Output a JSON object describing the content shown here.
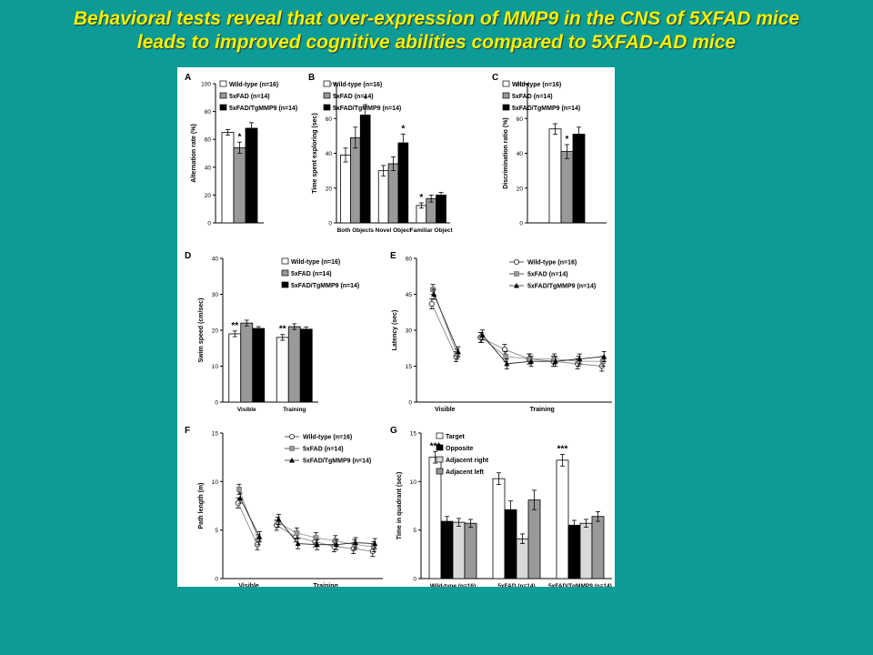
{
  "slide": {
    "title_line1": "Behavioral tests reveal that over-expression of MMP9 in the CNS of 5XFAD mice",
    "title_line2": "leads to improved cognitive abilities compared to 5XFAD-AD mice"
  },
  "colors": {
    "background": "#0c9b96",
    "title": "#f2f200"
  },
  "chart_data": [
    {
      "panel": "A",
      "type": "bar",
      "categories": [
        ""
      ],
      "series": [
        {
          "name": "Wild-type (n=16)",
          "values": [
            65
          ],
          "err": [
            2
          ],
          "fill": "#ffffff"
        },
        {
          "name": "5xFAD (n=14)",
          "values": [
            54
          ],
          "err": [
            4
          ],
          "fill": "#999999"
        },
        {
          "name": "5xFAD/TgMMP9 (n=14)",
          "values": [
            68
          ],
          "err": [
            4
          ],
          "fill": "#000000"
        }
      ],
      "annotations": [
        {
          "series": 1,
          "category": 0,
          "text": "*"
        }
      ],
      "ylabel": "Alternation rate (%)",
      "ylim": [
        0,
        100
      ],
      "yticks": [
        0,
        20,
        40,
        60,
        80,
        100
      ]
    },
    {
      "panel": "B",
      "type": "bar",
      "categories": [
        "Both Objects",
        "Novel Object",
        "Familiar Object"
      ],
      "series": [
        {
          "name": "Wild-type (n=16)",
          "values": [
            39,
            30,
            10
          ],
          "err": [
            4,
            3,
            1.5
          ],
          "fill": "#ffffff"
        },
        {
          "name": "5xFAD (n=14)",
          "values": [
            49,
            34,
            14
          ],
          "err": [
            6,
            4,
            2
          ],
          "fill": "#999999"
        },
        {
          "name": "5xFAD/TgMMP9 (n=14)",
          "values": [
            62,
            46,
            16
          ],
          "err": [
            6,
            5,
            1.5
          ],
          "fill": "#000000"
        }
      ],
      "annotations": [
        {
          "series": 2,
          "category": 0,
          "text": "*"
        },
        {
          "series": 2,
          "category": 1,
          "text": "*"
        },
        {
          "series": 0,
          "category": 2,
          "text": "*"
        }
      ],
      "ylabel": "Time spent exploring (sec)",
      "ylim": [
        0,
        80
      ],
      "yticks": [
        0,
        20,
        40,
        60,
        80
      ]
    },
    {
      "panel": "C",
      "type": "bar",
      "categories": [
        ""
      ],
      "series": [
        {
          "name": "Wild-type (n=16)",
          "values": [
            54
          ],
          "err": [
            3
          ],
          "fill": "#ffffff"
        },
        {
          "name": "5xFAD (n=14)",
          "values": [
            41
          ],
          "err": [
            4
          ],
          "fill": "#999999"
        },
        {
          "name": "5xFAD/TgMMP9 (n=14)",
          "values": [
            51
          ],
          "err": [
            4
          ],
          "fill": "#000000"
        }
      ],
      "annotations": [
        {
          "series": 1,
          "category": 0,
          "text": "*"
        }
      ],
      "ylabel": "Discrimination ratio (%)",
      "ylim": [
        0,
        80
      ],
      "yticks": [
        0,
        20,
        40,
        60,
        80
      ]
    },
    {
      "panel": "D",
      "type": "bar",
      "categories": [
        "Visible",
        "Training"
      ],
      "series": [
        {
          "name": "Wild-type (n=16)",
          "values": [
            19,
            18
          ],
          "err": [
            0.8,
            0.8
          ],
          "fill": "#ffffff"
        },
        {
          "name": "5xFAD (n=14)",
          "values": [
            22,
            21
          ],
          "err": [
            0.8,
            0.8
          ],
          "fill": "#999999"
        },
        {
          "name": "5xFAD/TgMMP9 (n=14)",
          "values": [
            20.5,
            20.3
          ],
          "err": [
            0.5,
            0.6
          ],
          "fill": "#000000"
        }
      ],
      "annotations": [
        {
          "series": 0,
          "category": 0,
          "text": "**"
        },
        {
          "series": 0,
          "category": 1,
          "text": "**"
        }
      ],
      "ylabel": "Swim speed (cm/sec)",
      "ylim": [
        0,
        40
      ],
      "yticks": [
        0,
        10,
        20,
        30,
        40
      ]
    },
    {
      "panel": "E",
      "type": "line",
      "x": [
        1,
        2,
        3,
        4,
        5,
        6,
        7,
        8
      ],
      "xgroups": [
        {
          "label": "Visible",
          "from": 1,
          "to": 2
        },
        {
          "label": "Training",
          "from": 3,
          "to": 8
        }
      ],
      "series": [
        {
          "name": "Wild-type (n=16)",
          "values": [
            41,
            19,
            27,
            22,
            18,
            17,
            16,
            15
          ],
          "marker": "open-circle"
        },
        {
          "name": "5xFAD (n=14)",
          "values": [
            47,
            20,
            27,
            19,
            18,
            18,
            17,
            17
          ],
          "marker": "gray-square"
        },
        {
          "name": "5xFAD/TgMMP9 (n=14)",
          "values": [
            45,
            21,
            28,
            16,
            17,
            17,
            18,
            19
          ],
          "marker": "filled-triangle"
        }
      ],
      "ylabel": "Latency (sec)",
      "ylim": [
        0,
        60
      ],
      "yticks": [
        0,
        15,
        30,
        45,
        60
      ]
    },
    {
      "panel": "F",
      "type": "line",
      "x": [
        1,
        2,
        3,
        4,
        5,
        6,
        7,
        8
      ],
      "xgroups": [
        {
          "label": "Visible",
          "from": 1,
          "to": 2
        },
        {
          "label": "Training",
          "from": 3,
          "to": 8
        }
      ],
      "series": [
        {
          "name": "Wild-type (n=16)",
          "values": [
            7.8,
            3.5,
            5.5,
            4.3,
            3.8,
            3.3,
            3.1,
            2.8
          ],
          "marker": "open-circle"
        },
        {
          "name": "5xFAD (n=14)",
          "values": [
            9.2,
            4.0,
            5.8,
            4.7,
            4.2,
            3.9,
            3.5,
            3.3
          ],
          "marker": "gray-square"
        },
        {
          "name": "5xFAD/TgMMP9 (n=14)",
          "values": [
            8.3,
            4.3,
            6.1,
            3.6,
            3.5,
            3.5,
            3.7,
            3.6
          ],
          "marker": "filled-triangle"
        }
      ],
      "ylabel": "Path length (m)",
      "ylim": [
        0,
        15
      ],
      "yticks": [
        0,
        5,
        10,
        15
      ]
    },
    {
      "panel": "G",
      "type": "bar",
      "categories": [
        "Wild-type (n=16)",
        "5xFAD (n=14)",
        "5xFAD/TgMMP9 (n=14)"
      ],
      "series": [
        {
          "name": "Target",
          "values": [
            12.5,
            10.3,
            12.2
          ],
          "err": [
            0.6,
            0.6,
            0.6
          ],
          "fill": "#ffffff"
        },
        {
          "name": "Opposite",
          "values": [
            5.9,
            7.1,
            5.5
          ],
          "err": [
            0.5,
            0.9,
            0.5
          ],
          "fill": "#000000"
        },
        {
          "name": "Adjacent right",
          "values": [
            5.8,
            4.1,
            5.7
          ],
          "err": [
            0.4,
            0.5,
            0.4
          ],
          "fill": "#d9d9d9"
        },
        {
          "name": "Adjacent left",
          "values": [
            5.7,
            8.1,
            6.4
          ],
          "err": [
            0.4,
            1.0,
            0.5
          ],
          "fill": "#999999"
        }
      ],
      "annotations": [
        {
          "series": 0,
          "category": 0,
          "text": "***"
        },
        {
          "series": 0,
          "category": 2,
          "text": "***"
        }
      ],
      "ylabel": "Time in quadrant (sec)",
      "ylim": [
        0,
        15
      ],
      "yticks": [
        0,
        5,
        10,
        15
      ]
    }
  ]
}
